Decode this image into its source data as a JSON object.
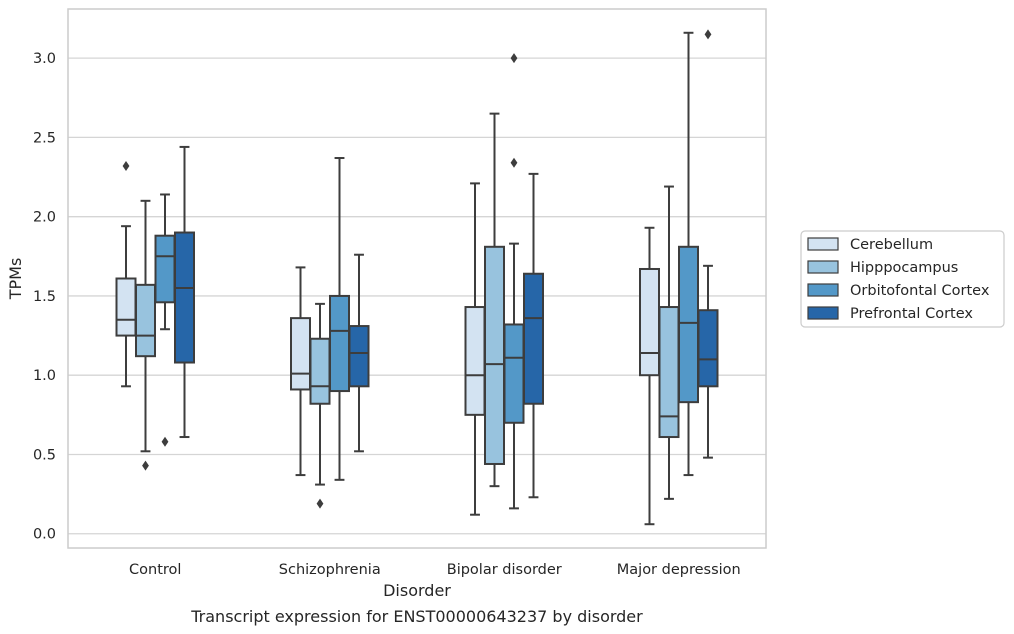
{
  "caption": "Transcript expression for ENST00000643237 by disorder",
  "chart_data": {
    "type": "boxplot",
    "title": "",
    "xlabel": "Disorder",
    "ylabel": "TPMs",
    "ylim": [
      -0.09,
      3.31
    ],
    "yticks": [
      0.0,
      0.5,
      1.0,
      1.5,
      2.0,
      2.5,
      3.0
    ],
    "ytick_labels": [
      "0.0",
      "0.5",
      "1.0",
      "1.5",
      "2.0",
      "2.5",
      "3.0"
    ],
    "grid": "horizontal",
    "legend_position": "right",
    "categories": [
      "Control",
      "Schizophrenia",
      "Bipolar disorder",
      "Major depression"
    ],
    "series": [
      {
        "name": "Cerebellum",
        "color": "#d3e3f2",
        "boxes": [
          {
            "whisker_low": 0.93,
            "q1": 1.25,
            "median": 1.35,
            "q3": 1.61,
            "whisker_high": 1.94,
            "outliers": [
              2.32
            ]
          },
          {
            "whisker_low": 0.37,
            "q1": 0.91,
            "median": 1.01,
            "q3": 1.36,
            "whisker_high": 1.68,
            "outliers": []
          },
          {
            "whisker_low": 0.12,
            "q1": 0.75,
            "median": 1.0,
            "q3": 1.43,
            "whisker_high": 2.21,
            "outliers": []
          },
          {
            "whisker_low": 0.06,
            "q1": 1.0,
            "median": 1.14,
            "q3": 1.67,
            "whisker_high": 1.93,
            "outliers": []
          }
        ]
      },
      {
        "name": "Hipppocampus",
        "color": "#98c3de",
        "boxes": [
          {
            "whisker_low": 0.52,
            "q1": 1.12,
            "median": 1.25,
            "q3": 1.57,
            "whisker_high": 2.1,
            "outliers": [
              0.43
            ]
          },
          {
            "whisker_low": 0.31,
            "q1": 0.82,
            "median": 0.93,
            "q3": 1.23,
            "whisker_high": 1.45,
            "outliers": [
              0.19
            ]
          },
          {
            "whisker_low": 0.3,
            "q1": 0.44,
            "median": 1.07,
            "q3": 1.81,
            "whisker_high": 2.65,
            "outliers": []
          },
          {
            "whisker_low": 0.22,
            "q1": 0.61,
            "median": 0.74,
            "q3": 1.43,
            "whisker_high": 2.19,
            "outliers": []
          }
        ]
      },
      {
        "name": "Orbitofontal Cortex",
        "color": "#5398c8",
        "boxes": [
          {
            "whisker_low": 1.29,
            "q1": 1.46,
            "median": 1.75,
            "q3": 1.88,
            "whisker_high": 2.14,
            "outliers": [
              0.58
            ]
          },
          {
            "whisker_low": 0.34,
            "q1": 0.9,
            "median": 1.28,
            "q3": 1.5,
            "whisker_high": 2.37,
            "outliers": []
          },
          {
            "whisker_low": 0.16,
            "q1": 0.7,
            "median": 1.11,
            "q3": 1.32,
            "whisker_high": 1.83,
            "outliers": [
              2.34,
              3.0
            ]
          },
          {
            "whisker_low": 0.37,
            "q1": 0.83,
            "median": 1.33,
            "q3": 1.81,
            "whisker_high": 3.16,
            "outliers": []
          }
        ]
      },
      {
        "name": "Prefrontal Cortex",
        "color": "#2666a8",
        "boxes": [
          {
            "whisker_low": 0.61,
            "q1": 1.08,
            "median": 1.55,
            "q3": 1.9,
            "whisker_high": 2.44,
            "outliers": []
          },
          {
            "whisker_low": 0.52,
            "q1": 0.93,
            "median": 1.14,
            "q3": 1.31,
            "whisker_high": 1.76,
            "outliers": []
          },
          {
            "whisker_low": 0.23,
            "q1": 0.82,
            "median": 1.36,
            "q3": 1.64,
            "whisker_high": 2.27,
            "outliers": []
          },
          {
            "whisker_low": 0.48,
            "q1": 0.93,
            "median": 1.1,
            "q3": 1.41,
            "whisker_high": 1.69,
            "outliers": [
              3.15
            ]
          }
        ]
      }
    ]
  }
}
